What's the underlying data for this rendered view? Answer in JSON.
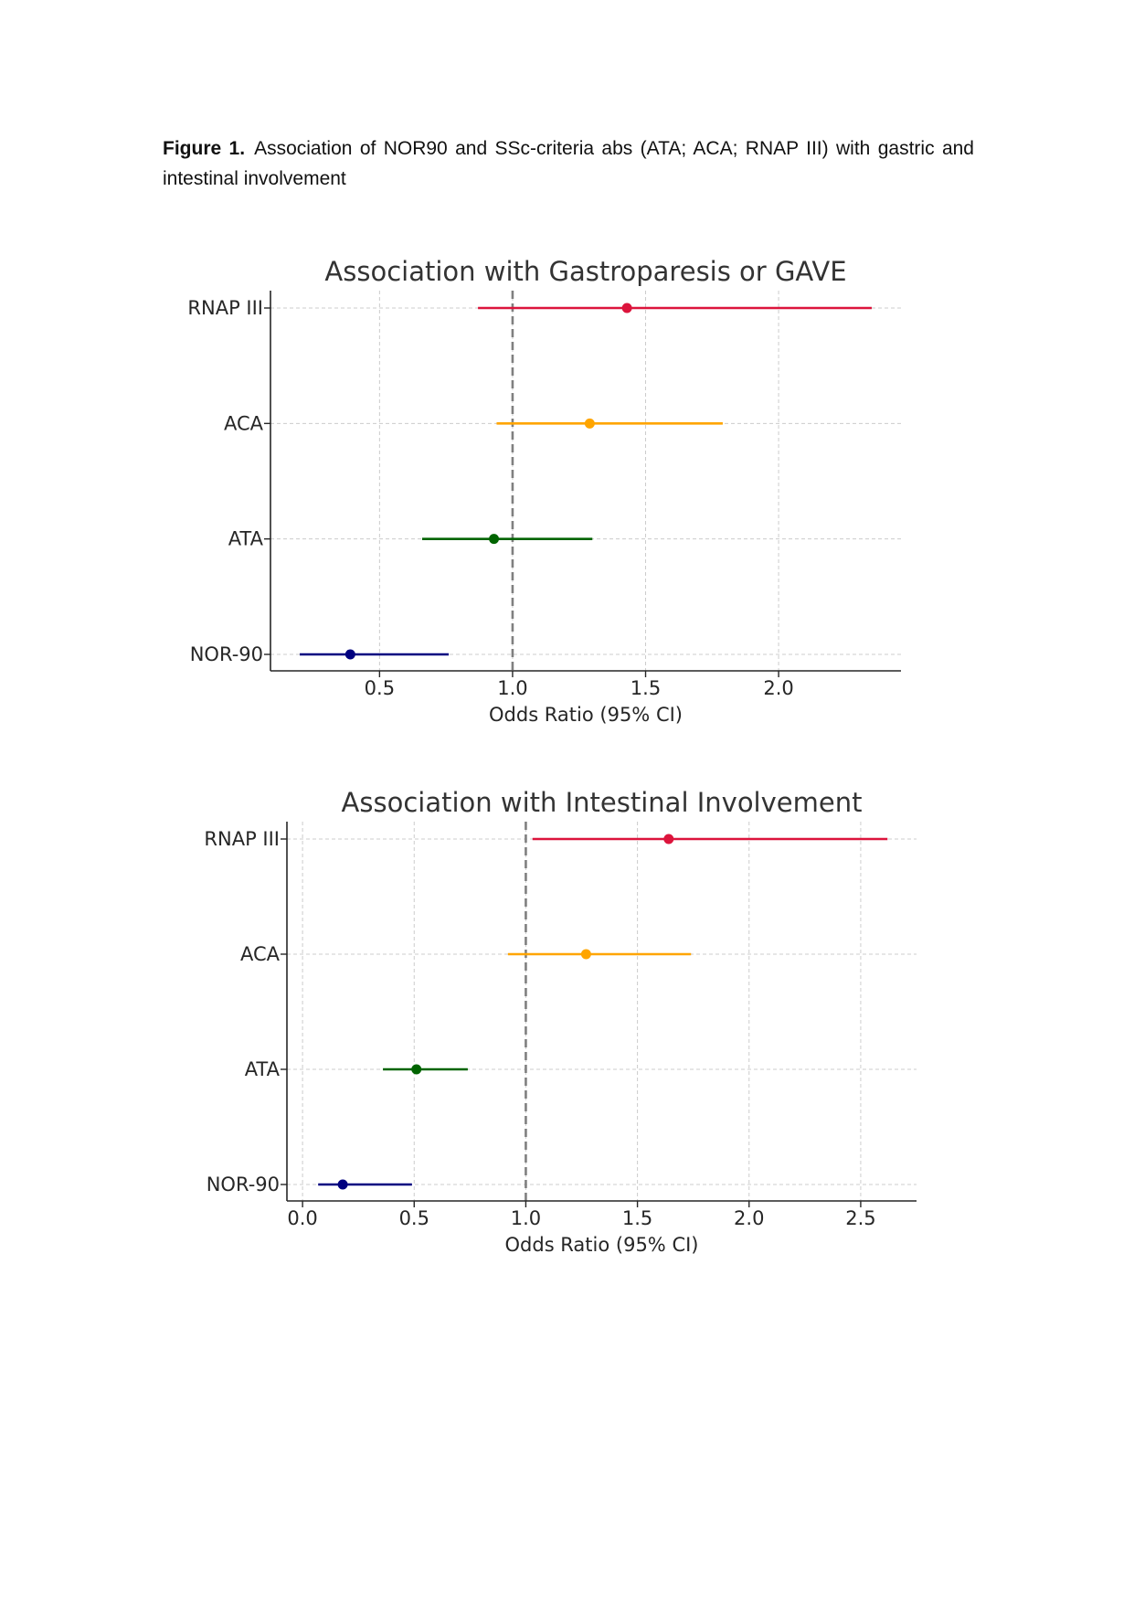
{
  "figure": {
    "label": "Figure 1.",
    "caption": "Association of NOR90 and SSc-criteria abs (ATA; ACA; RNAP III) with gastric and intestinal involvement"
  },
  "chart_data": [
    {
      "type": "forest",
      "title": "Association with Gastroparesis or GAVE",
      "xlabel": "Odds Ratio (95% CI)",
      "ylabel": "",
      "xlim": [
        0.09,
        2.46
      ],
      "xticks": [
        "0.5",
        "1.0",
        "1.5",
        "2.0"
      ],
      "reference_line": 1.0,
      "grid": true,
      "rows": [
        {
          "label": "RNAP III",
          "or": 1.43,
          "lower": 0.87,
          "upper": 2.35,
          "color": "#dc143c"
        },
        {
          "label": "ACA",
          "or": 1.29,
          "lower": 0.94,
          "upper": 1.79,
          "color": "#ffa500"
        },
        {
          "label": "ATA",
          "or": 0.93,
          "lower": 0.66,
          "upper": 1.3,
          "color": "#006400"
        },
        {
          "label": "NOR-90",
          "or": 0.39,
          "lower": 0.2,
          "upper": 0.76,
          "color": "#000080"
        }
      ]
    },
    {
      "type": "forest",
      "title": "Association with Intestinal Involvement",
      "xlabel": "Odds Ratio (95% CI)",
      "ylabel": "",
      "xlim": [
        -0.07,
        2.75
      ],
      "xticks": [
        "0.0",
        "0.5",
        "1.0",
        "1.5",
        "2.0",
        "2.5"
      ],
      "reference_line": 1.0,
      "grid": true,
      "rows": [
        {
          "label": "RNAP III",
          "or": 1.64,
          "lower": 1.03,
          "upper": 2.62,
          "color": "#dc143c"
        },
        {
          "label": "ACA",
          "or": 1.27,
          "lower": 0.92,
          "upper": 1.74,
          "color": "#ffa500"
        },
        {
          "label": "ATA",
          "or": 0.51,
          "lower": 0.36,
          "upper": 0.74,
          "color": "#006400"
        },
        {
          "label": "NOR-90",
          "or": 0.18,
          "lower": 0.07,
          "upper": 0.49,
          "color": "#000080"
        }
      ]
    }
  ]
}
